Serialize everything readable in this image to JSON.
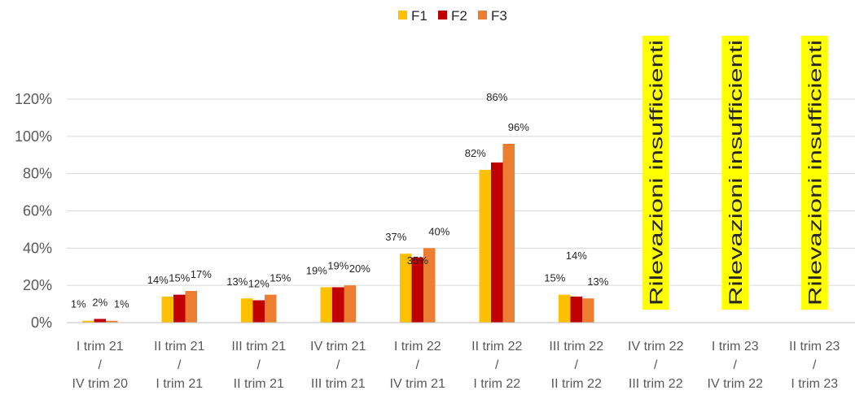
{
  "chart_data": {
    "type": "bar",
    "title": "",
    "xlabel": "",
    "ylabel": "",
    "ylim": [
      0,
      1.2
    ],
    "y_ticks": [
      "0%",
      "20%",
      "40%",
      "60%",
      "80%",
      "100%",
      "120%"
    ],
    "grid": true,
    "legend_position": "top",
    "categories": [
      [
        "I trim 21",
        "/",
        "IV trim 20"
      ],
      [
        "II trim 21",
        "/",
        "I trim 21"
      ],
      [
        "III trim 21",
        "/",
        "II trim 21"
      ],
      [
        "IV trim 21",
        "/",
        "III trim 21"
      ],
      [
        "I trim 22",
        "/",
        "IV trim 21"
      ],
      [
        "II trim 22",
        "/",
        "I trim 22"
      ],
      [
        "III trim 22",
        "/",
        "II trim 22"
      ],
      [
        "IV trim 22",
        "/",
        "III trim 22"
      ],
      [
        "I trim 23",
        "/",
        "IV trim 22"
      ],
      [
        "II trim 23",
        "/",
        "I trim 23"
      ]
    ],
    "series": [
      {
        "name": "F1",
        "color": "#FFC000",
        "values": [
          0.01,
          0.14,
          0.13,
          0.19,
          0.37,
          0.82,
          0.15,
          null,
          null,
          null
        ],
        "labels": [
          "1%",
          "14%",
          "13%",
          "19%",
          "37%",
          "82%",
          "15%",
          null,
          null,
          null
        ]
      },
      {
        "name": "F2",
        "color": "#C00000",
        "values": [
          0.02,
          0.15,
          0.12,
          0.19,
          0.35,
          0.86,
          0.14,
          null,
          null,
          null
        ],
        "labels": [
          "2%",
          "15%",
          "12%",
          "19%",
          "35%",
          "86%",
          "14%",
          null,
          null,
          null
        ]
      },
      {
        "name": "F3",
        "color": "#ED7D31",
        "values": [
          0.01,
          0.17,
          0.15,
          0.2,
          0.4,
          0.96,
          0.13,
          null,
          null,
          null
        ],
        "labels": [
          "1%",
          "17%",
          "15%",
          "20%",
          "40%",
          "96%",
          "13%",
          null,
          null,
          null
        ]
      }
    ],
    "annotations": [
      {
        "category_index": 7,
        "text": "Rilevazioni insufficienti",
        "background": "#FFFF00"
      },
      {
        "category_index": 8,
        "text": "Rilevazioni insufficienti",
        "background": "#FFFF00"
      },
      {
        "category_index": 9,
        "text": "Rilevazioni insufficienti",
        "background": "#FFFF00"
      }
    ]
  }
}
